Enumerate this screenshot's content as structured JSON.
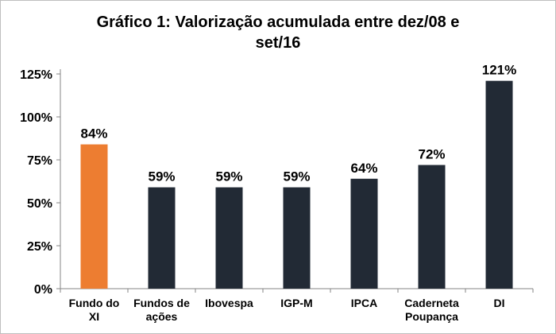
{
  "chart_data": {
    "type": "bar",
    "title_line1": "Gráfico 1: Valorização acumulada entre dez/08 e",
    "title_line2": "set/16",
    "categories": [
      [
        "Fundo do",
        "XI"
      ],
      [
        "Fundos de",
        "ações"
      ],
      [
        "Ibovespa"
      ],
      [
        "IGP-M"
      ],
      [
        "IPCA"
      ],
      [
        "Caderneta",
        "Poupança"
      ],
      [
        "DI"
      ]
    ],
    "values": [
      84,
      59,
      59,
      59,
      64,
      72,
      121
    ],
    "value_labels": [
      "84%",
      "59%",
      "59%",
      "59%",
      "64%",
      "72%",
      "121%"
    ],
    "bar_colors": [
      "#ED7D31",
      "#222A35",
      "#222A35",
      "#222A35",
      "#222A35",
      "#222A35",
      "#222A35"
    ],
    "y_ticks": [
      0,
      25,
      50,
      75,
      100,
      125
    ],
    "y_tick_labels": [
      "0%",
      "25%",
      "50%",
      "75%",
      "100%",
      "125%"
    ],
    "ylim": [
      0,
      125
    ],
    "xlabel": "",
    "ylabel": "",
    "grid": false,
    "legend": "none"
  }
}
